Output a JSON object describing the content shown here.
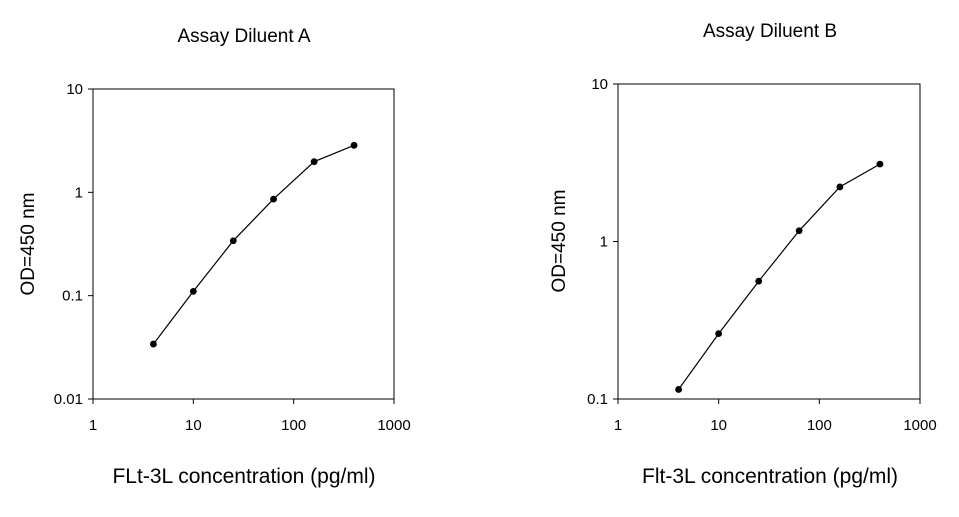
{
  "chart_data": [
    {
      "type": "line",
      "title": "Assay Diluent A",
      "xlabel": "FLt-3L concentration (pg/ml)",
      "ylabel": "OD=450 nm",
      "xscale": "log",
      "yscale": "log",
      "xlim": [
        1,
        1000
      ],
      "ylim": [
        0.01,
        10
      ],
      "xticks": [
        "1",
        "10",
        "100",
        "1000"
      ],
      "yticks": [
        "10",
        "1",
        "0.1",
        "0.01"
      ],
      "grid": false,
      "series": [
        {
          "x": [
            4,
            10,
            25,
            63,
            160,
            400
          ],
          "y": [
            0.034,
            0.11,
            0.34,
            0.86,
            1.98,
            2.85
          ]
        }
      ]
    },
    {
      "type": "line",
      "title": "Assay Diluent B",
      "xlabel": "Flt-3L concentration (pg/ml)",
      "ylabel": "OD=450 nm",
      "xscale": "log",
      "yscale": "log",
      "xlim": [
        1,
        1000
      ],
      "ylim": [
        0.1,
        10
      ],
      "xticks": [
        "1",
        "10",
        "100",
        "1000"
      ],
      "yticks": [
        "10",
        "1",
        "0.1"
      ],
      "grid": false,
      "series": [
        {
          "x": [
            4,
            10,
            25,
            63,
            160,
            400
          ],
          "y": [
            0.115,
            0.26,
            0.56,
            1.17,
            2.22,
            3.1
          ]
        }
      ]
    }
  ]
}
